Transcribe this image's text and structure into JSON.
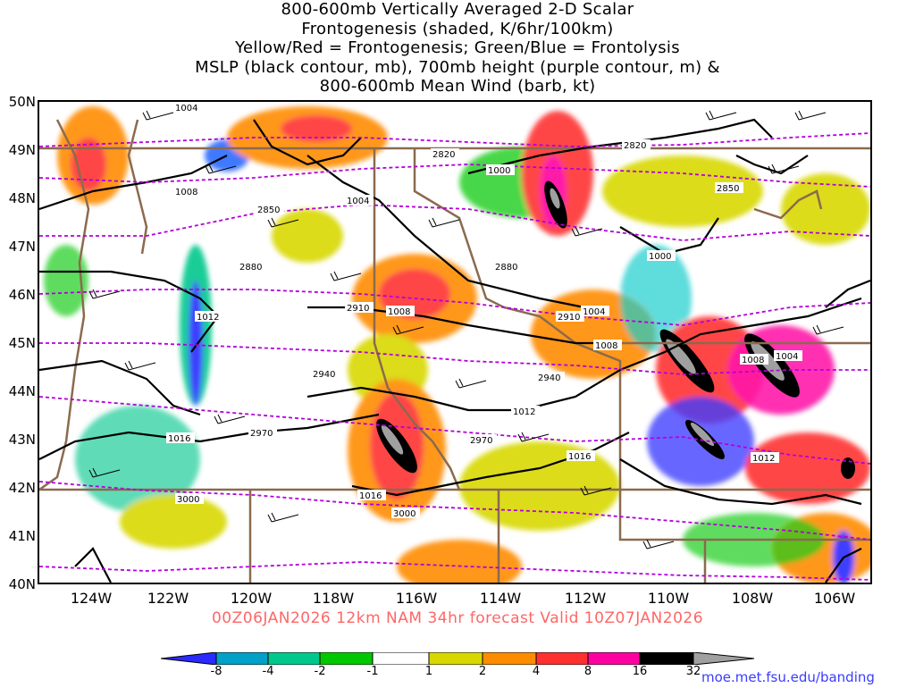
{
  "title_lines": [
    "800-600mb Vertically Averaged 2-D Scalar",
    "Frontogenesis (shaded, K/6hr/100km)",
    "Yellow/Red = Frontogenesis;  Green/Blue = Frontolysis",
    "MSLP (black contour, mb), 700mb height (purple contour, m) &",
    "800-600mb Mean Wind (barb, kt)"
  ],
  "lat_labels": [
    "50N",
    "49N",
    "48N",
    "47N",
    "46N",
    "45N",
    "44N",
    "43N",
    "42N",
    "41N",
    "40N"
  ],
  "lon_labels": [
    "124W",
    "122W",
    "120W",
    "118W",
    "116W",
    "114W",
    "112W",
    "110W",
    "108W",
    "106W"
  ],
  "footer": "00Z06JAN2026 12km NAM 34hr forecast Valid 10Z07JAN2026",
  "colorbar": {
    "labels": [
      "-8",
      "-4",
      "-2",
      "-1",
      "1",
      "2",
      "4",
      "8",
      "16",
      "32"
    ],
    "colors": [
      "#2a2aff",
      "#00a0c8",
      "#00c88c",
      "#00c800",
      "#ffffff",
      "#d8d800",
      "#ff8c00",
      "#ff3030",
      "#ff00a0",
      "#000000",
      "#a0a0a0"
    ]
  },
  "mslp_labels": [
    "1004",
    "1008",
    "1000",
    "1004",
    "1012",
    "1008",
    "1000",
    "1004",
    "1008",
    "1016",
    "1016",
    "1012",
    "1016",
    "1012",
    "1008",
    "1004"
  ],
  "height_labels": [
    "2820",
    "2850",
    "2880",
    "2910",
    "2940",
    "2970",
    "3000",
    "2820",
    "2850",
    "2880",
    "2910",
    "2940",
    "2970",
    "3000"
  ],
  "credit": "moe.met.fsu.edu/banding",
  "colors": {
    "mslp_contour": "#000000",
    "height_contour": "#b400dc",
    "borders": "#8b6a4e",
    "footer": "#ff6666",
    "credit": "#3b3bff"
  }
}
